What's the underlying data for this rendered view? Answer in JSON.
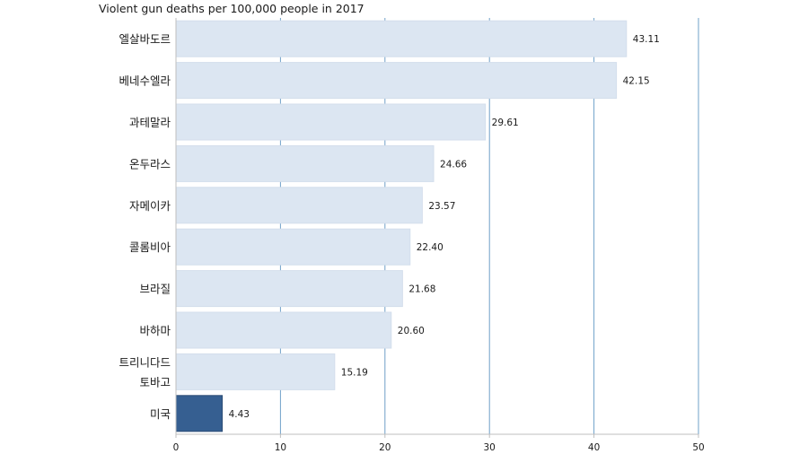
{
  "chart_data": {
    "type": "bar",
    "orientation": "horizontal",
    "title": "Violent gun deaths per 100,000 people in 2017",
    "xlabel": "",
    "ylabel": "",
    "xlim": [
      0,
      50
    ],
    "xticks": [
      0,
      10,
      20,
      30,
      40,
      50
    ],
    "grid": "vertical",
    "legend": "none",
    "colors": {
      "bar": "#dce6f2",
      "highlight": "#365f91",
      "grid": "#6fa0c8",
      "axis": "#bfbfbf"
    },
    "categories": [
      [
        "엘살바도르"
      ],
      [
        "베네수엘라"
      ],
      [
        "과테말라"
      ],
      [
        "온두라스"
      ],
      [
        "자메이카"
      ],
      [
        "콜롬비아"
      ],
      [
        "브라질"
      ],
      [
        "바하마"
      ],
      [
        "트리니다드",
        "토바고"
      ],
      [
        "미국"
      ]
    ],
    "values": [
      43.11,
      42.15,
      29.61,
      24.66,
      23.57,
      22.4,
      21.68,
      20.6,
      15.19,
      4.43
    ],
    "value_labels": [
      "43.11",
      "42.15",
      "29.61",
      "24.66",
      "23.57",
      "22.40",
      "21.68",
      "20.60",
      "15.19",
      "4.43"
    ],
    "highlight_index": 9
  }
}
